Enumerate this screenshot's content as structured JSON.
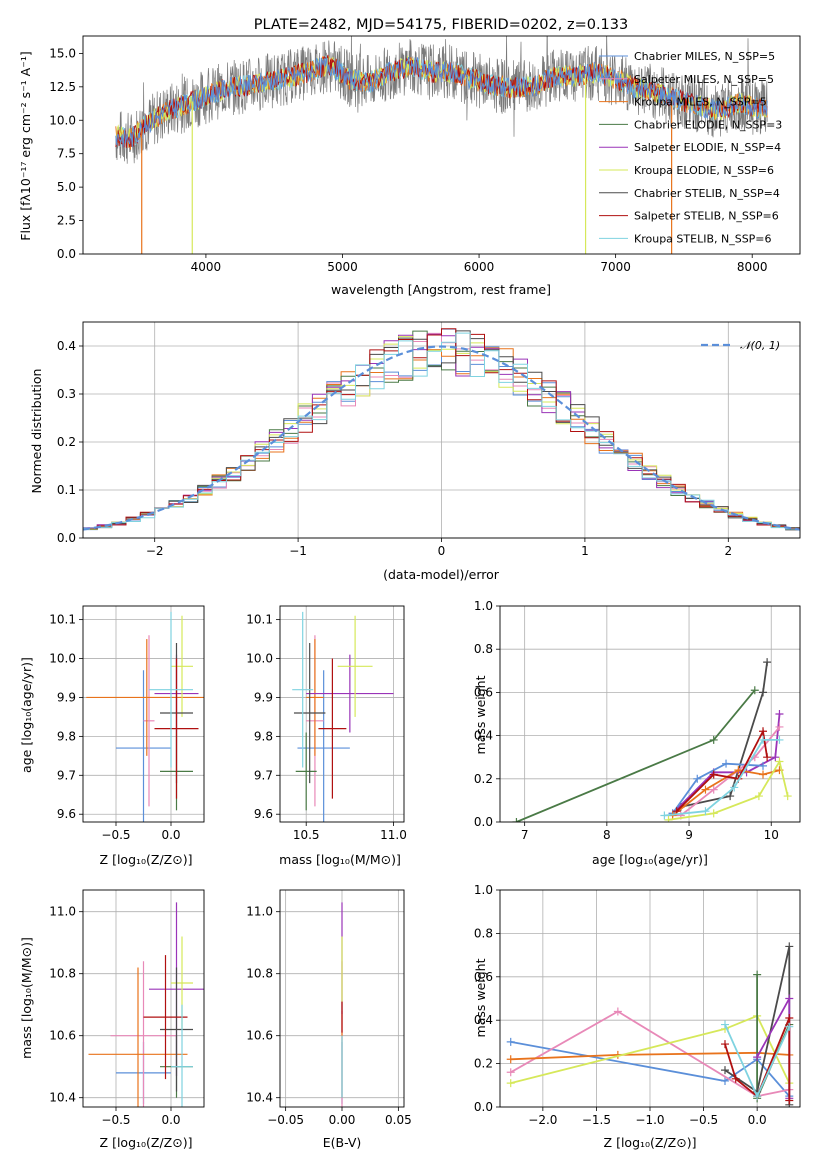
{
  "colors": {
    "chabrier_miles": "#5b8fd9",
    "salpeter_miles": "#e889b8",
    "kroupa_miles": "#e8731c",
    "chabrier_elodie": "#4a7a46",
    "salpeter_elodie": "#9a34b8",
    "kroupa_elodie": "#d6e85a",
    "chabrier_stelib": "#4b4b4b",
    "salpeter_stelib": "#b01010",
    "kroupa_stelib": "#7fd3e0",
    "gauss": "#5b8fd9"
  },
  "chart_data": [
    {
      "type": "line",
      "title": "PLATE=2482, MJD=54175, FIBERID=0202, z=0.133",
      "xlabel": "wavelength [Angstrom, rest frame]",
      "ylabel": "Flux [fλ10⁻¹⁷ erg cm⁻² s⁻¹ A⁻¹]",
      "xlim": [
        3100,
        8350
      ],
      "ylim": [
        0,
        16.3
      ],
      "xticks": [
        "4000",
        "5000",
        "6000",
        "7000",
        "8000"
      ],
      "yticks": [
        "0.0",
        "2.5",
        "5.0",
        "7.5",
        "10.0",
        "12.5",
        "15.0"
      ],
      "legend": "top-right",
      "series": [
        {
          "name": "Chabrier MILES, N_SSP=5",
          "color_key": "chabrier_miles"
        },
        {
          "name": "Salpeter MILES, N_SSP=5",
          "color_key": "salpeter_miles"
        },
        {
          "name": "Kroupa MILES, N_SSP=5",
          "color_key": "kroupa_miles"
        },
        {
          "name": "Chabrier ELODIE, N_SSP=3",
          "color_key": "chabrier_elodie"
        },
        {
          "name": "Salpeter ELODIE, N_SSP=4",
          "color_key": "salpeter_elodie"
        },
        {
          "name": "Kroupa ELODIE, N_SSP=6",
          "color_key": "kroupa_elodie"
        },
        {
          "name": "Chabrier STELIB, N_SSP=4",
          "color_key": "chabrier_stelib"
        },
        {
          "name": "Salpeter STELIB, N_SSP=6",
          "color_key": "salpeter_stelib"
        },
        {
          "name": "Kroupa STELIB, N_SSP=6",
          "color_key": "kroupa_stelib"
        }
      ],
      "model_continuum": {
        "x": [
          3350,
          3450,
          3550,
          3700,
          3850,
          3950,
          4050,
          4150,
          4300,
          4450,
          4600,
          4750,
          4900,
          5050,
          5200,
          5350,
          5500,
          5650,
          5800,
          5950,
          6100,
          6250,
          6400,
          6550,
          6700,
          6850,
          7000,
          7150,
          7300,
          7450,
          7600,
          7750,
          7900,
          8050
        ],
        "y": [
          8.8,
          8.6,
          9.6,
          10.6,
          11.2,
          11.6,
          12.0,
          12.4,
          12.6,
          12.9,
          13.2,
          13.6,
          14.2,
          13.1,
          12.8,
          13.6,
          14.1,
          13.6,
          13.6,
          13.1,
          12.6,
          12.4,
          12.5,
          13.3,
          13.3,
          13.6,
          13.1,
          12.4,
          12.1,
          11.6,
          11.1,
          10.7,
          11.3,
          10.9
        ]
      }
    },
    {
      "type": "bar",
      "xlabel": "(data-model)/error",
      "ylabel": "Normed distribution",
      "xlim": [
        -2.5,
        2.5
      ],
      "ylim": [
        0,
        0.45
      ],
      "xticks": [
        "−2",
        "−1",
        "0",
        "1",
        "2"
      ],
      "yticks": [
        "0.0",
        "0.1",
        "0.2",
        "0.3",
        "0.4"
      ],
      "legend_label": "𝒩(0, 1)",
      "legend": "top-right",
      "bin_width": 0.1,
      "reference_curve": "gaussian N(0,1)"
    },
    {
      "type": "scatter",
      "xlabel": "Z [log₁₀(Z/Z⊙)]",
      "ylabel": "age  [log₁₀(age/yr)]",
      "xlim": [
        -0.8,
        0.3
      ],
      "ylim": [
        9.58,
        10.135
      ],
      "xticks": [
        "−0.5",
        "0.0"
      ],
      "yticks": [
        "9.6",
        "9.7",
        "9.8",
        "9.9",
        "10.0",
        "10.1"
      ],
      "points": [
        {
          "series": "chabrier_miles",
          "x": -0.25,
          "xerr": 0.25,
          "y": 9.77,
          "yerr": 0.2
        },
        {
          "series": "salpeter_miles",
          "x": -0.2,
          "xerr": 0.05,
          "y": 9.84,
          "yerr": 0.22
        },
        {
          "series": "kroupa_miles",
          "x": -0.22,
          "xerr": 0.55,
          "y": 9.9,
          "yerr": 0.15
        },
        {
          "series": "chabrier_elodie",
          "x": 0.05,
          "xerr": 0.15,
          "y": 9.71,
          "yerr": 0.1
        },
        {
          "series": "salpeter_elodie",
          "x": 0.05,
          "xerr": 0.2,
          "y": 9.91,
          "yerr": 0.1
        },
        {
          "series": "kroupa_elodie",
          "x": 0.1,
          "xerr": 0.1,
          "y": 9.98,
          "yerr": 0.13
        },
        {
          "series": "chabrier_stelib",
          "x": 0.05,
          "xerr": 0.15,
          "y": 9.86,
          "yerr": 0.18
        },
        {
          "series": "salpeter_stelib",
          "x": 0.05,
          "xerr": 0.2,
          "y": 9.82,
          "yerr": 0.18
        },
        {
          "series": "kroupa_stelib",
          "x": 0.0,
          "xerr": 0.2,
          "y": 9.92,
          "yerr": 0.2
        }
      ]
    },
    {
      "type": "scatter",
      "xlabel": "mass [log₁₀(M/M⊙)]",
      "ylabel": "",
      "xlim": [
        10.35,
        11.06
      ],
      "ylim": [
        9.58,
        10.135
      ],
      "xticks": [
        "10.5",
        "11.0"
      ],
      "yticks": [
        "9.6",
        "9.7",
        "9.8",
        "9.9",
        "10.0",
        "10.1"
      ],
      "points": [
        {
          "series": "chabrier_miles",
          "x": 10.6,
          "xerr": 0.15,
          "y": 9.77,
          "yerr": 0.2
        },
        {
          "series": "salpeter_miles",
          "x": 10.55,
          "xerr": 0.05,
          "y": 9.84,
          "yerr": 0.22
        },
        {
          "series": "kroupa_miles",
          "x": 10.55,
          "xerr": 0.05,
          "y": 9.9,
          "yerr": 0.15
        },
        {
          "series": "chabrier_elodie",
          "x": 10.5,
          "xerr": 0.06,
          "y": 9.71,
          "yerr": 0.1
        },
        {
          "series": "salpeter_elodie",
          "x": 10.75,
          "xerr": 0.25,
          "y": 9.91,
          "yerr": 0.1
        },
        {
          "series": "kroupa_elodie",
          "x": 10.78,
          "xerr": 0.1,
          "y": 9.98,
          "yerr": 0.13
        },
        {
          "series": "chabrier_stelib",
          "x": 10.52,
          "xerr": 0.09,
          "y": 9.86,
          "yerr": 0.18
        },
        {
          "series": "salpeter_stelib",
          "x": 10.65,
          "xerr": 0.08,
          "y": 9.82,
          "yerr": 0.18
        },
        {
          "series": "kroupa_stelib",
          "x": 10.48,
          "xerr": 0.06,
          "y": 9.92,
          "yerr": 0.2
        }
      ]
    },
    {
      "type": "line",
      "xlabel": "age  [log₁₀(age/yr)]",
      "ylabel": "mass weight",
      "xlim": [
        6.7,
        10.35
      ],
      "ylim": [
        0,
        1.0
      ],
      "xticks": [
        "7",
        "8",
        "9",
        "10"
      ],
      "yticks": [
        "0.0",
        "0.2",
        "0.4",
        "0.6",
        "0.8",
        "1.0"
      ],
      "series": [
        {
          "series": "chabrier_elodie",
          "x": [
            6.9,
            9.3,
            9.8
          ],
          "y": [
            0.0,
            0.38,
            0.61
          ]
        },
        {
          "series": "chabrier_stelib",
          "x": [
            8.9,
            9.5,
            9.9,
            9.95
          ],
          "y": [
            0.07,
            0.12,
            0.6,
            0.74
          ]
        },
        {
          "series": "salpeter_elodie",
          "x": [
            8.8,
            9.3,
            9.7,
            10.05,
            10.1
          ],
          "y": [
            0.04,
            0.23,
            0.23,
            0.3,
            0.5
          ]
        },
        {
          "series": "chabrier_miles",
          "x": [
            8.8,
            9.1,
            9.45,
            9.9
          ],
          "y": [
            0.04,
            0.2,
            0.27,
            0.26
          ]
        },
        {
          "series": "salpeter_miles",
          "x": [
            8.9,
            9.3,
            9.8,
            10.1
          ],
          "y": [
            0.03,
            0.15,
            0.3,
            0.44
          ]
        },
        {
          "series": "kroupa_miles",
          "x": [
            8.8,
            9.2,
            9.6,
            9.9,
            10.1
          ],
          "y": [
            0.03,
            0.15,
            0.24,
            0.22,
            0.24
          ]
        },
        {
          "series": "kroupa_elodie",
          "x": [
            8.75,
            9.3,
            9.85,
            10.1,
            10.2
          ],
          "y": [
            0.01,
            0.04,
            0.12,
            0.28,
            0.12
          ]
        },
        {
          "series": "salpeter_stelib",
          "x": [
            8.85,
            9.3,
            9.6,
            9.9,
            9.95
          ],
          "y": [
            0.05,
            0.22,
            0.2,
            0.42,
            0.3
          ]
        },
        {
          "series": "kroupa_stelib",
          "x": [
            8.7,
            9.2,
            9.55,
            9.9,
            10.1
          ],
          "y": [
            0.03,
            0.05,
            0.16,
            0.38,
            0.38
          ]
        }
      ]
    },
    {
      "type": "scatter",
      "xlabel": "Z [log₁₀(Z/Z⊙)]",
      "ylabel": "mass [log₁₀(M/M⊙)]",
      "xlim": [
        -0.8,
        0.3
      ],
      "ylim": [
        10.37,
        11.07
      ],
      "xticks": [
        "−0.5",
        "0.0"
      ],
      "yticks": [
        "10.4",
        "10.6",
        "10.8",
        "11.0"
      ],
      "points": [
        {
          "series": "chabrier_miles",
          "x": -0.25,
          "xerr": 0.25,
          "y": 10.48,
          "yerr": 0.1
        },
        {
          "series": "salpeter_miles",
          "x": -0.25,
          "xerr": 0.3,
          "y": 10.6,
          "yerr": 0.24
        },
        {
          "series": "kroupa_miles",
          "x": -0.3,
          "xerr": 0.45,
          "y": 10.54,
          "yerr": 0.28
        },
        {
          "series": "chabrier_elodie",
          "x": 0.05,
          "xerr": 0.15,
          "y": 10.5,
          "yerr": 0.1
        },
        {
          "series": "salpeter_elodie",
          "x": 0.05,
          "xerr": 0.25,
          "y": 10.75,
          "yerr": 0.28
        },
        {
          "series": "kroupa_elodie",
          "x": 0.1,
          "xerr": 0.1,
          "y": 10.77,
          "yerr": 0.15
        },
        {
          "series": "chabrier_stelib",
          "x": 0.05,
          "xerr": 0.15,
          "y": 10.62,
          "yerr": 0.2
        },
        {
          "series": "salpeter_stelib",
          "x": -0.05,
          "xerr": 0.2,
          "y": 10.66,
          "yerr": 0.2
        },
        {
          "series": "kroupa_stelib",
          "x": 0.1,
          "xerr": 0.1,
          "y": 10.5,
          "yerr": 0.2
        }
      ]
    },
    {
      "type": "scatter",
      "xlabel": "E(B-V)",
      "ylabel": "",
      "xlim": [
        -0.055,
        0.055
      ],
      "ylim": [
        10.37,
        11.07
      ],
      "xticks": [
        "−0.05",
        "0.00",
        "0.05"
      ],
      "yticks": [
        "10.4",
        "10.6",
        "10.8",
        "11.0"
      ],
      "points": [
        {
          "series": "chabrier_miles",
          "x": 0.0,
          "xerr": 0.0,
          "y": 10.48,
          "yerr": 0.1
        },
        {
          "series": "salpeter_miles",
          "x": 0.0,
          "xerr": 0.0,
          "y": 10.6,
          "yerr": 0.24
        },
        {
          "series": "kroupa_miles",
          "x": 0.0,
          "xerr": 0.0,
          "y": 10.54,
          "yerr": 0.14
        },
        {
          "series": "salpeter_elodie",
          "x": 0.0,
          "xerr": 0.0,
          "y": 10.85,
          "yerr": 0.18
        },
        {
          "series": "kroupa_elodie",
          "x": 0.0,
          "xerr": 0.0,
          "y": 10.8,
          "yerr": 0.12
        },
        {
          "series": "salpeter_stelib",
          "x": 0.0,
          "xerr": 0.0,
          "y": 10.66,
          "yerr": 0.05
        },
        {
          "series": "kroupa_stelib",
          "x": 0.0,
          "xerr": 0.0,
          "y": 10.5,
          "yerr": 0.1
        }
      ]
    },
    {
      "type": "line",
      "xlabel": "Z [log₁₀(Z/Z⊙)]",
      "ylabel": "mass weight",
      "xlim": [
        -2.4,
        0.4
      ],
      "ylim": [
        0,
        1.0
      ],
      "xticks": [
        "−2.0",
        "−1.5",
        "−1.0",
        "−0.5",
        "0.0"
      ],
      "yticks": [
        "0.0",
        "0.2",
        "0.4",
        "0.6",
        "0.8",
        "1.0"
      ],
      "series": [
        {
          "series": "chabrier_miles",
          "x": [
            -2.3,
            -0.3,
            0.0,
            0.3
          ],
          "y": [
            0.3,
            0.12,
            0.22,
            0.05
          ]
        },
        {
          "series": "salpeter_miles",
          "x": [
            -2.3,
            -1.3,
            0.0,
            0.3
          ],
          "y": [
            0.16,
            0.44,
            0.05,
            0.08
          ]
        },
        {
          "series": "kroupa_miles",
          "x": [
            -2.3,
            -1.3,
            0.0,
            0.3
          ],
          "y": [
            0.22,
            0.24,
            0.25,
            0.24
          ]
        },
        {
          "series": "kroupa_elodie",
          "x": [
            -2.3,
            -0.3,
            0.0,
            0.3
          ],
          "y": [
            0.11,
            0.36,
            0.42,
            0.11
          ]
        },
        {
          "series": "chabrier_elodie",
          "x": [
            0.0,
            0.0,
            0.3
          ],
          "y": [
            0.61,
            0.04,
            0.38
          ]
        },
        {
          "series": "chabrier_stelib",
          "x": [
            -0.3,
            0.0,
            0.3,
            0.3
          ],
          "y": [
            0.17,
            0.07,
            0.74,
            0.01
          ]
        },
        {
          "series": "salpeter_elodie",
          "x": [
            0.0,
            0.3,
            0.3
          ],
          "y": [
            0.23,
            0.5,
            0.04
          ]
        },
        {
          "series": "salpeter_stelib",
          "x": [
            -0.3,
            -0.2,
            0.0,
            0.3,
            0.3
          ],
          "y": [
            0.29,
            0.13,
            0.05,
            0.41,
            0.03
          ]
        },
        {
          "series": "kroupa_stelib",
          "x": [
            -0.3,
            0.0,
            0.3
          ],
          "y": [
            0.38,
            0.05,
            0.37
          ]
        }
      ]
    }
  ]
}
